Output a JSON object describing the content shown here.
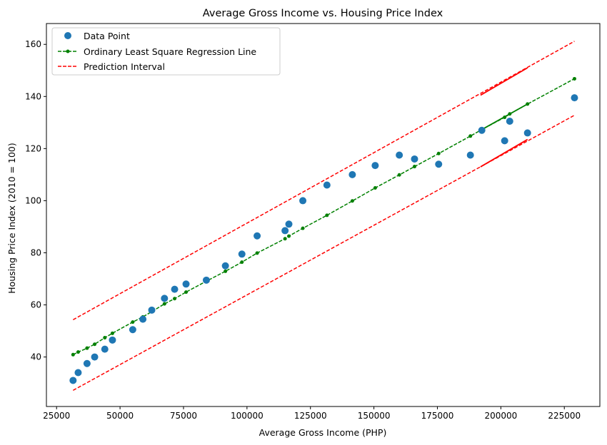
{
  "chart_data": {
    "type": "scatter",
    "title": "Average Gross Income vs. Housing Price Index",
    "xlabel": "Average Gross Income (PHP)",
    "ylabel": "Housing Price Index (2010 = 100)",
    "xlim": [
      21000,
      239000
    ],
    "ylim": [
      21,
      168
    ],
    "x_ticks": [
      25000,
      50000,
      75000,
      100000,
      125000,
      150000,
      175000,
      200000,
      225000
    ],
    "y_ticks": [
      40,
      60,
      80,
      100,
      120,
      140,
      160
    ],
    "grid": false,
    "legend_position": "upper left",
    "colors": {
      "data_points": "#1f77b4",
      "regression": "#008000",
      "prediction": "#ff0000"
    },
    "series": [
      {
        "name": "Data Point",
        "kind": "scatter",
        "x": [
          31500,
          33500,
          37000,
          40000,
          44000,
          47000,
          55000,
          59000,
          62500,
          67500,
          71500,
          76000,
          84000,
          91500,
          98000,
          104000,
          115000,
          116500,
          122000,
          131500,
          141500,
          150500,
          160000,
          166000,
          175500,
          188000,
          192500,
          201500,
          203500,
          210500,
          229000
        ],
        "y": [
          31.0,
          34.0,
          37.5,
          40.0,
          43.0,
          46.5,
          50.5,
          54.5,
          58.0,
          62.5,
          66.0,
          68.0,
          69.5,
          75.0,
          79.5,
          86.5,
          88.5,
          91.0,
          100.0,
          106.0,
          110.0,
          113.5,
          117.5,
          116.0,
          114.0,
          117.5,
          127.0,
          123.0,
          130.5,
          126.0,
          139.5
        ]
      },
      {
        "name": "Ordinary Least Square Regression Line",
        "kind": "line-marker",
        "x": [
          31500,
          33500,
          37000,
          40000,
          44000,
          47000,
          55000,
          59000,
          62500,
          67500,
          71500,
          76000,
          84000,
          91500,
          98000,
          104000,
          115000,
          116500,
          122000,
          131500,
          141500,
          150500,
          160000,
          166000,
          175500,
          188000,
          192500,
          201500,
          203500,
          210500,
          229000
        ],
        "y": [
          40.9,
          41.9,
          43.4,
          44.9,
          47.4,
          49.1,
          53.4,
          55.4,
          57.4,
          60.4,
          62.4,
          64.9,
          69.1,
          72.9,
          76.4,
          79.9,
          85.4,
          86.4,
          89.4,
          94.4,
          99.9,
          104.9,
          109.9,
          113.1,
          118.1,
          124.8,
          127.3,
          132.0,
          133.3,
          137.1,
          146.8
        ]
      },
      {
        "name": "Prediction Interval",
        "kind": "dashed-line",
        "x": [
          31500,
          229000
        ],
        "upper": [
          54.3,
          161.2
        ],
        "lower": [
          27.2,
          132.8
        ]
      }
    ],
    "prediction_segments": {
      "x": [
        192000,
        210500
      ],
      "upper": [
        140.5,
        151.0
      ],
      "lower": [
        113.0,
        123.5
      ]
    }
  }
}
